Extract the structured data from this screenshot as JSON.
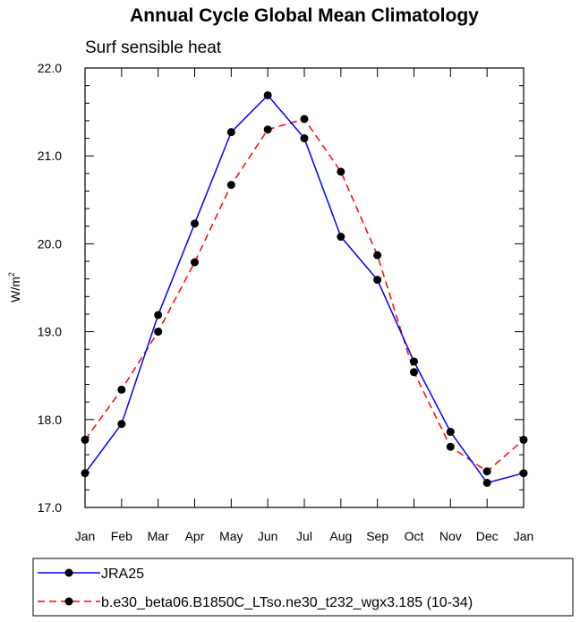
{
  "chart_data": {
    "type": "line",
    "title": "Annual Cycle Global Mean Climatology",
    "subtitle": "Surf sensible heat",
    "ylabel": "W/m",
    "ylabel_superscript": "2",
    "xlabel": "",
    "categories": [
      "Jan",
      "Feb",
      "Mar",
      "Apr",
      "May",
      "Jun",
      "Jul",
      "Aug",
      "Sep",
      "Oct",
      "Nov",
      "Dec",
      "Jan"
    ],
    "ylim": [
      17.0,
      22.0
    ],
    "yticks": [
      17.0,
      18.0,
      19.0,
      20.0,
      21.0,
      22.0
    ],
    "ytick_labels": [
      "17.0",
      "18.0",
      "19.0",
      "20.0",
      "21.0",
      "22.0"
    ],
    "legend_position": "bottom",
    "series": [
      {
        "name": "JRA25",
        "color": "#0000ff",
        "line_style": "solid",
        "values": [
          17.39,
          17.95,
          19.19,
          20.23,
          21.27,
          21.69,
          21.2,
          20.08,
          19.59,
          18.66,
          17.86,
          17.28,
          17.39
        ]
      },
      {
        "name": "b.e30_beta06.B1850C_LTso.ne30_t232_wgx3.185 (10-34)",
        "color": "#ff0000",
        "line_style": "dashed",
        "values": [
          17.77,
          18.34,
          19.0,
          19.79,
          20.67,
          21.3,
          21.42,
          20.82,
          19.87,
          18.54,
          17.69,
          17.41,
          17.77
        ]
      }
    ]
  }
}
